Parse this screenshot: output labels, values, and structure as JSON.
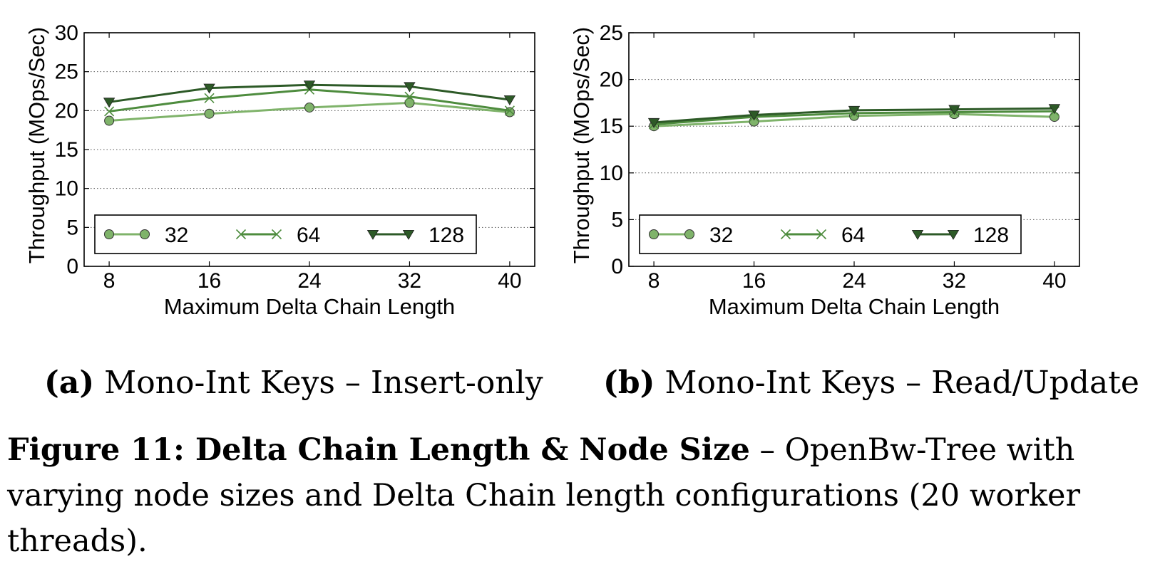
{
  "figure": {
    "caption_label": "Figure 11: Delta Chain Length & Node Size",
    "caption_text": " – OpenBw-Tree with varying node sizes and Delta Chain length configurations (20 worker threads)."
  },
  "colors": {
    "s32": "#7fb36a",
    "s64": "#4e8c3e",
    "s128": "#2d5a27"
  },
  "chart_data": [
    {
      "type": "line",
      "subcaption_label": "(a)",
      "subcaption_text": " Mono-Int Keys – Insert-only",
      "xlabel": "Maximum Delta Chain Length",
      "ylabel": "Throughput (MOps/Sec)",
      "x": [
        8,
        16,
        24,
        32,
        40
      ],
      "xlim": [
        6,
        42
      ],
      "ylim": [
        0,
        30
      ],
      "yticks": [
        0,
        5,
        10,
        15,
        20,
        25,
        30
      ],
      "grid": "horizontal dotted",
      "legend_placement": "bottom",
      "series": [
        {
          "name": "32",
          "marker": "circle",
          "values": [
            18.7,
            19.6,
            20.4,
            21.0,
            19.8
          ]
        },
        {
          "name": "64",
          "marker": "x",
          "values": [
            19.9,
            21.6,
            22.7,
            21.8,
            20.0
          ]
        },
        {
          "name": "128",
          "marker": "triangle-down",
          "values": [
            21.1,
            22.9,
            23.3,
            23.1,
            21.4
          ]
        }
      ]
    },
    {
      "type": "line",
      "subcaption_label": "(b)",
      "subcaption_text": " Mono-Int Keys – Read/Update",
      "xlabel": "Maximum Delta Chain Length",
      "ylabel": "Throughput (MOps/Sec)",
      "x": [
        8,
        16,
        24,
        32,
        40
      ],
      "xlim": [
        6,
        42
      ],
      "ylim": [
        0,
        25
      ],
      "yticks": [
        0,
        5,
        10,
        15,
        20,
        25
      ],
      "grid": "horizontal dotted",
      "legend_placement": "bottom",
      "series": [
        {
          "name": "32",
          "marker": "circle",
          "values": [
            15.0,
            15.5,
            16.1,
            16.3,
            16.0
          ]
        },
        {
          "name": "64",
          "marker": "x",
          "values": [
            15.2,
            16.0,
            16.4,
            16.5,
            16.6
          ]
        },
        {
          "name": "128",
          "marker": "triangle-down",
          "values": [
            15.4,
            16.2,
            16.7,
            16.8,
            16.9
          ]
        }
      ]
    }
  ]
}
